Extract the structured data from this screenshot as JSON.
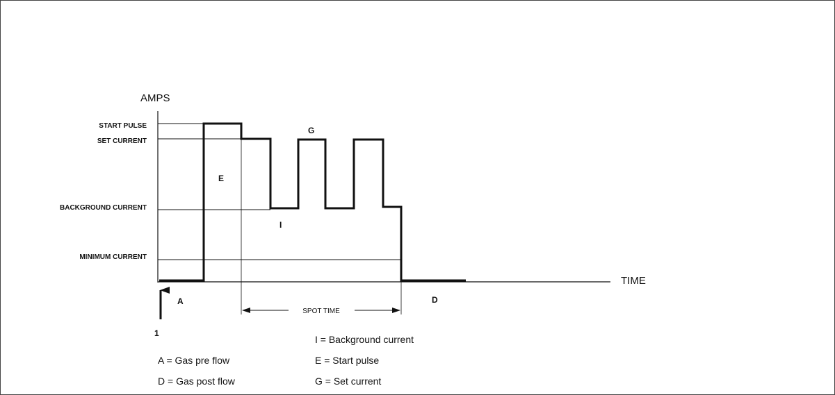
{
  "axes": {
    "y_label": "AMPS",
    "x_label": "TIME"
  },
  "levels": {
    "start_pulse": "START PULSE",
    "set_current": "SET CURRENT",
    "background_current": "BACKGROUND CURRENT",
    "minimum_current": "MINIMUM CURRENT"
  },
  "markers": {
    "E": "E",
    "G": "G",
    "I": "I",
    "A": "A",
    "D": "D",
    "trigger": "1"
  },
  "spot_time": "SPOT TIME",
  "legend": {
    "background": "I = Background current",
    "gas_pre": "A = Gas pre flow",
    "start_pulse": "E = Start pulse",
    "gas_post": "D = Gas post flow",
    "set_current": "G = Set current"
  }
}
